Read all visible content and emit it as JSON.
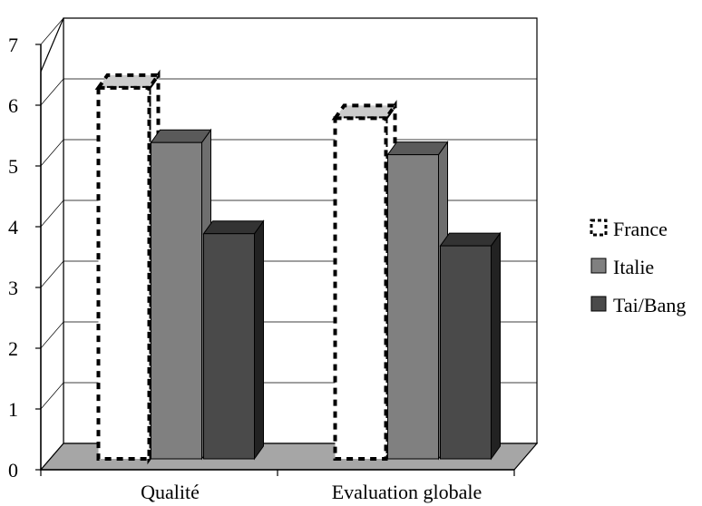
{
  "chart_data": {
    "type": "bar",
    "style": "3d-clustered-column",
    "categories": [
      "Qualité",
      "Evaluation globale"
    ],
    "series": [
      {
        "name": "France",
        "values": [
          6.3,
          5.8
        ],
        "color": "#ffffff",
        "border": "dotted-black"
      },
      {
        "name": "Italie",
        "values": [
          5.4,
          5.2
        ],
        "color": "#808080"
      },
      {
        "name": "Tai/Bang",
        "values": [
          3.9,
          3.7
        ],
        "color": "#4a4a4a"
      }
    ],
    "y_ticks": [
      "0",
      "1",
      "2",
      "3",
      "4",
      "5",
      "6",
      "7"
    ],
    "ylim": [
      0,
      7
    ],
    "grid": true,
    "legend_position": "right",
    "colors": {
      "floor": "#a6a6a6",
      "wall": "#ffffff",
      "axis": "#000000"
    }
  }
}
